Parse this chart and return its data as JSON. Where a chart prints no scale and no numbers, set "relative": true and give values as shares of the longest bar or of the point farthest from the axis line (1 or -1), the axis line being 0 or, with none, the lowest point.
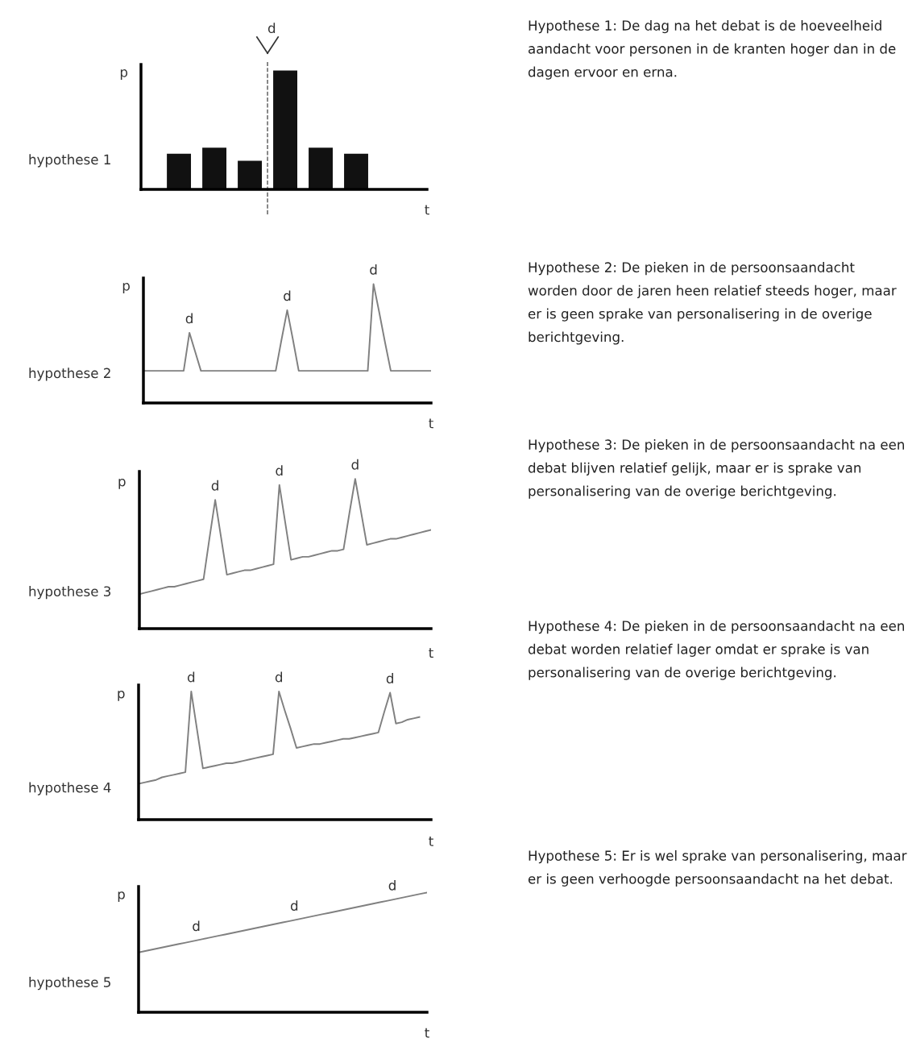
{
  "chart_data": [
    {
      "type": "bar",
      "title": "hypothese 1",
      "xlabel": "t",
      "ylabel": "p",
      "relative": true,
      "categories": [
        null,
        null,
        null,
        null,
        null,
        null
      ],
      "values": [
        0.3,
        0.35,
        0.24,
        1,
        0.35,
        0.3
      ],
      "color": "#111111",
      "annotations": [
        {
          "text": "d"
        },
        "Hypothese 1: De dag na het debat is de hoeveelheid aandacht voor personen in de kranten hoger dan in de dagen ervoor en erna."
      ]
    },
    {
      "type": "line",
      "title": "hypothese 2",
      "xlabel": "t",
      "ylabel": "p",
      "relative": true,
      "marker": "none",
      "line_style": "solid",
      "categories": [
        null,
        null,
        null,
        null,
        null,
        null,
        null,
        null,
        null,
        null,
        null,
        null,
        null,
        null,
        null,
        null,
        null,
        null,
        null,
        null,
        null,
        null,
        null,
        null,
        null,
        null,
        null,
        null,
        null,
        null,
        null,
        null,
        null,
        null,
        null,
        null,
        null,
        null,
        null,
        null,
        null,
        null,
        null,
        null,
        null,
        null,
        null,
        null,
        null,
        null,
        null
      ],
      "series": [
        {
          "color": "#808080",
          "values": [
            0.27,
            0.27,
            0.27,
            0.27,
            0.27,
            0.27,
            0.27,
            0.27,
            0.59,
            0.43,
            0.27,
            0.27,
            0.27,
            0.27,
            0.27,
            0.27,
            0.27,
            0.27,
            0.27,
            0.27,
            0.27,
            0.27,
            0.27,
            0.27,
            0.53,
            0.78,
            0.53,
            0.27,
            0.27,
            0.27,
            0.27,
            0.27,
            0.27,
            0.27,
            0.27,
            0.27,
            0.27,
            0.27,
            0.27,
            0.27,
            1,
            0.76,
            0.51,
            0.27,
            0.27,
            0.27,
            0.27,
            0.27,
            0.27,
            0.27,
            0.27
          ]
        }
      ],
      "annotations": [
        {
          "text": "d",
          "y": 0.59
        },
        {
          "text": "d",
          "y": 0.78
        },
        {
          "text": "d",
          "y": 1
        },
        "Hypothese 2: De pieken in de persoonsaandacht worden door de jaren heen relatief steeds hoger, maar er is geen sprake van personalisering in de overige berichtgeving."
      ]
    },
    {
      "type": "line",
      "title": "hypothese 3",
      "xlabel": "t",
      "ylabel": "p",
      "relative": true,
      "marker": "none",
      "line_style": "solid",
      "categories": [
        null,
        null,
        null,
        null,
        null,
        null,
        null,
        null,
        null,
        null,
        null,
        null,
        null,
        null,
        null,
        null,
        null,
        null,
        null,
        null,
        null,
        null,
        null,
        null,
        null,
        null,
        null,
        null,
        null,
        null,
        null,
        null,
        null,
        null,
        null,
        null,
        null,
        null,
        null,
        null,
        null,
        null,
        null,
        null,
        null,
        null,
        null,
        null,
        null,
        null,
        null
      ],
      "series": [
        {
          "color": "#808080",
          "values": [
            0.23,
            0.24,
            0.25,
            0.26,
            0.27,
            0.28,
            0.28,
            0.29,
            0.3,
            0.31,
            0.32,
            0.33,
            0.6,
            0.86,
            0.61,
            0.36,
            0.37,
            0.38,
            0.39,
            0.39,
            0.4,
            0.41,
            0.42,
            0.43,
            0.96,
            0.71,
            0.46,
            0.47,
            0.48,
            0.48,
            0.49,
            0.5,
            0.51,
            0.52,
            0.52,
            0.53,
            0.77,
            1,
            0.78,
            0.56,
            0.57,
            0.58,
            0.59,
            0.6,
            0.6,
            0.61,
            0.62,
            0.63,
            0.64,
            0.65,
            0.66
          ]
        }
      ],
      "annotations": [
        {
          "text": "d",
          "y": 0.86
        },
        {
          "text": "d",
          "y": 0.96
        },
        {
          "text": "d",
          "y": 1
        },
        "Hypothese 3: De pieken in de persoonsaandacht na een debat blijven relatief gelijk, maar er is sprake van personalisering van de overige berichtgeving."
      ]
    },
    {
      "type": "line",
      "title": "hypothese 4",
      "xlabel": "t",
      "ylabel": "p",
      "relative": true,
      "marker": "none",
      "line_style": "solid",
      "categories": [
        null,
        null,
        null,
        null,
        null,
        null,
        null,
        null,
        null,
        null,
        null,
        null,
        null,
        null,
        null,
        null,
        null,
        null,
        null,
        null,
        null,
        null,
        null,
        null,
        null,
        null,
        null,
        null,
        null,
        null,
        null,
        null,
        null,
        null,
        null,
        null,
        null,
        null,
        null,
        null,
        null,
        null,
        null,
        null,
        null,
        null,
        null,
        null,
        null,
        null,
        null
      ],
      "series": [
        {
          "color": "#808080",
          "values": [
            0.28,
            0.29,
            0.3,
            0.31,
            0.33,
            0.34,
            0.35,
            0.36,
            0.37,
            1,
            0.7,
            0.4,
            0.41,
            0.42,
            0.43,
            0.44,
            0.44,
            0.45,
            0.46,
            0.47,
            0.48,
            0.49,
            0.5,
            0.51,
            1,
            0.85,
            0.71,
            0.56,
            0.57,
            0.58,
            0.59,
            0.59,
            0.6,
            0.61,
            0.62,
            0.63,
            0.63,
            0.64,
            0.65,
            0.66,
            0.67,
            0.68,
            0.84,
            0.99,
            0.75,
            0.76,
            0.78,
            0.79,
            0.8,
            null,
            null
          ]
        }
      ],
      "annotations": [
        {
          "text": "d",
          "y": 1
        },
        {
          "text": "d",
          "y": 1
        },
        {
          "text": "d",
          "y": 0.99
        },
        "Hypothese 4: De pieken in de persoonsaandacht na een debat worden relatief lager omdat er sprake is van personalisering van de overige berichtgeving."
      ]
    },
    {
      "type": "line",
      "title": "hypothese 5",
      "xlabel": "t",
      "ylabel": "p",
      "relative": true,
      "marker": "none",
      "line_style": "solid",
      "categories": [
        null,
        null,
        null,
        null,
        null,
        null,
        null,
        null,
        null,
        null,
        null,
        null,
        null,
        null,
        null,
        null,
        null,
        null,
        null,
        null,
        null,
        null,
        null,
        null,
        null,
        null,
        null,
        null,
        null,
        null,
        null,
        null,
        null,
        null,
        null,
        null,
        null,
        null,
        null,
        null,
        null,
        null,
        null,
        null,
        null,
        null,
        null,
        null,
        null,
        null,
        null
      ],
      "series": [
        {
          "color": "#808080",
          "values": [
            0.5,
            0.51,
            0.52,
            0.53,
            0.54,
            0.55,
            0.56,
            0.57,
            0.58,
            0.59,
            0.6,
            0.61,
            0.62,
            0.63,
            0.64,
            0.65,
            0.66,
            0.67,
            0.68,
            0.69,
            0.7,
            0.71,
            0.72,
            0.73,
            0.74,
            0.75,
            0.76,
            0.77,
            0.78,
            0.79,
            0.8,
            0.81,
            0.82,
            0.83,
            0.84,
            0.85,
            0.86,
            0.87,
            0.88,
            0.89,
            0.9,
            0.91,
            0.92,
            0.93,
            0.94,
            0.95,
            0.96,
            0.97,
            0.98,
            0.99,
            1
          ]
        }
      ],
      "annotations": [
        {
          "text": "d",
          "y": 0.6
        },
        {
          "text": "d",
          "y": 0.77
        },
        {
          "text": "d",
          "y": 0.94
        },
        "Hypothese 5: Er is wel sprake van personalisering, maar er is geen verhoogde persoonsaandacht na het debat."
      ]
    }
  ]
}
